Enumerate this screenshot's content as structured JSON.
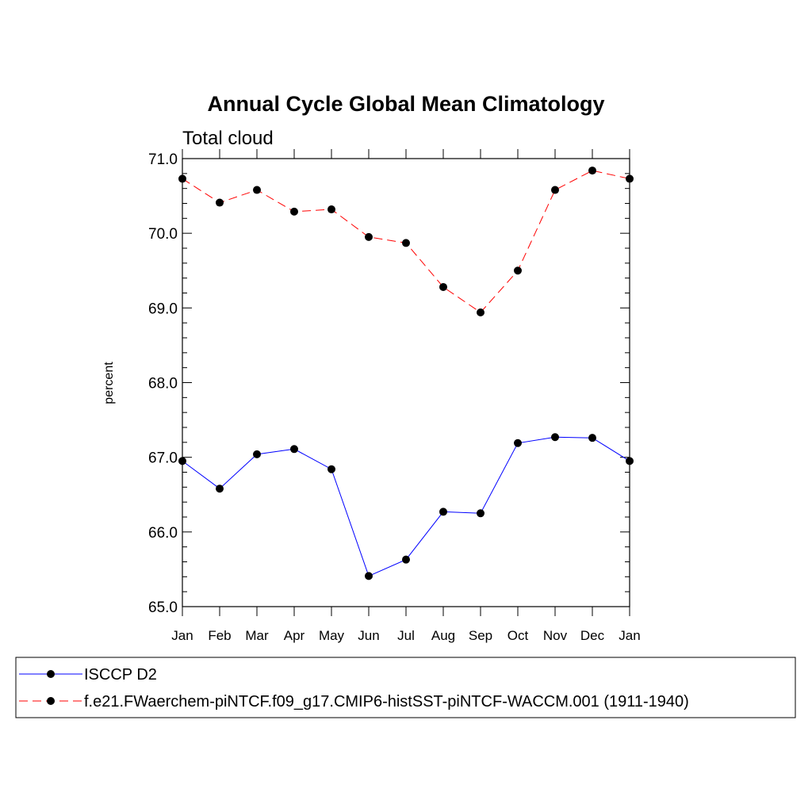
{
  "chart_data": {
    "type": "line",
    "title": "Annual Cycle Global Mean Climatology",
    "subtitle": "Total cloud",
    "xlabel": "",
    "ylabel": "percent",
    "categories": [
      "Jan",
      "Feb",
      "Mar",
      "Apr",
      "May",
      "Jun",
      "Jul",
      "Aug",
      "Sep",
      "Oct",
      "Nov",
      "Dec",
      "Jan"
    ],
    "ylim": [
      65.0,
      71.0
    ],
    "yticks": [
      "65.0",
      "66.0",
      "67.0",
      "68.0",
      "69.0",
      "70.0",
      "71.0"
    ],
    "grid": false,
    "legend_position": "bottom",
    "series": [
      {
        "name": "ISCCP D2",
        "color": "#0000ff",
        "dash": "solid",
        "marker": "filled-circle",
        "values": [
          66.95,
          66.58,
          67.04,
          67.11,
          66.84,
          65.41,
          65.63,
          66.27,
          66.25,
          67.19,
          67.27,
          67.26,
          66.95
        ]
      },
      {
        "name": "f.e21.FWaerchem-piNTCF.f09_g17.CMIP6-histSST-piNTCF-WACCM.001 (1911-1940)",
        "color": "#ff0000",
        "dash": "dashed",
        "marker": "filled-circle",
        "values": [
          70.73,
          70.41,
          70.58,
          70.29,
          70.32,
          69.95,
          69.87,
          69.28,
          68.94,
          69.5,
          70.58,
          70.84,
          70.73
        ]
      }
    ]
  }
}
